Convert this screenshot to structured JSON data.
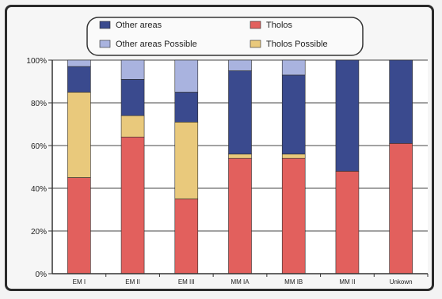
{
  "chart_data": {
    "type": "bar",
    "stacked": true,
    "title": "",
    "xlabel": "",
    "ylabel": "",
    "ylim": [
      0,
      100
    ],
    "y_ticks": [
      "0%",
      "20%",
      "40%",
      "60%",
      "80%",
      "100%"
    ],
    "grid": true,
    "legend_position": "top",
    "categories": [
      "EM I",
      "EM II",
      "EM III",
      "MM IA",
      "MM IB",
      "MM II",
      "Unkown"
    ],
    "series": [
      {
        "name": "Tholos",
        "color": "#e2605d",
        "values": [
          45,
          64,
          35,
          54,
          54,
          48,
          61
        ]
      },
      {
        "name": "Tholos Possible",
        "color": "#e9c97c",
        "values": [
          40,
          10,
          36,
          2,
          2,
          0,
          0
        ]
      },
      {
        "name": "Other areas",
        "color": "#3a4a8e",
        "values": [
          12,
          17,
          14,
          39,
          37,
          52,
          39
        ]
      },
      {
        "name": "Other areas Possible",
        "color": "#a9b3df",
        "values": [
          3,
          9,
          15,
          5,
          7,
          0,
          0
        ]
      }
    ]
  }
}
